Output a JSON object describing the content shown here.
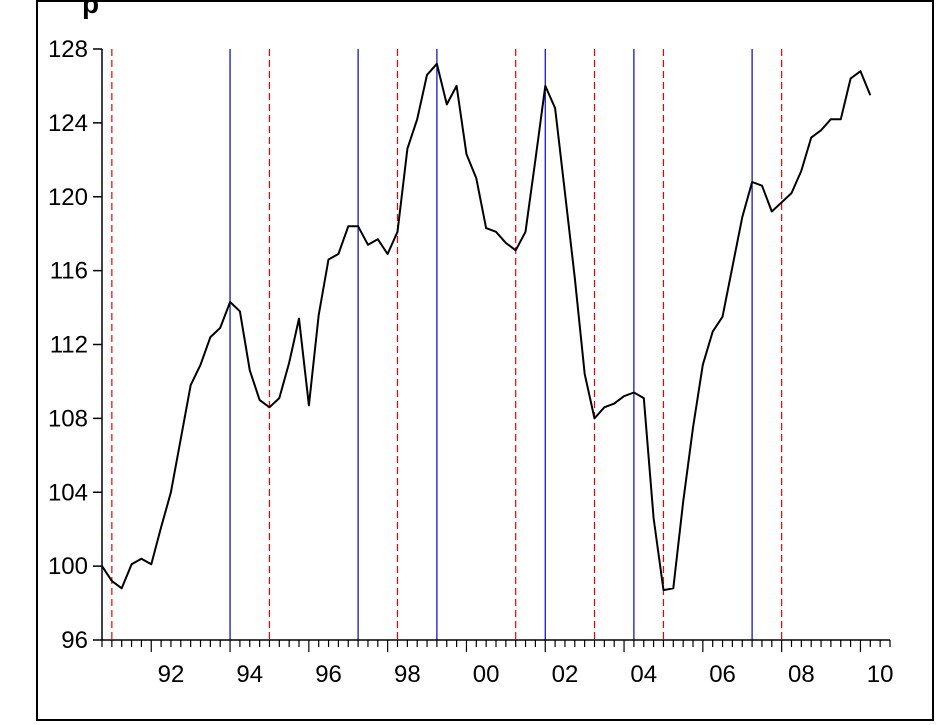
{
  "figure": {
    "title_fragment": "p"
  },
  "chart_data": {
    "type": "line",
    "title": "",
    "xlabel": "",
    "ylabel": "",
    "xlim": [
      1990.75,
      2010.75
    ],
    "ylim": [
      96,
      128
    ],
    "y_ticks": [
      96,
      100,
      104,
      108,
      112,
      116,
      120,
      124,
      128
    ],
    "y_tick_labels": [
      "96",
      "100",
      "104",
      "108",
      "112",
      "116",
      "120",
      "124",
      "128"
    ],
    "x_tick_labels": [
      "92",
      "94",
      "96",
      "98",
      "00",
      "02",
      "04",
      "06",
      "08",
      "10"
    ],
    "x_tick_years": [
      1992,
      1994,
      1996,
      1998,
      2000,
      2002,
      2004,
      2006,
      2008,
      2010
    ],
    "x_minor_step_years": 0.25,
    "grid": false,
    "line_color": "#000000",
    "peak_line_color": "#0000cc",
    "trough_line_color": "#ee0000",
    "series": [
      {
        "frequency": "quarterly",
        "start": "1990Q4",
        "values": [
          100.0,
          99.2,
          98.8,
          100.1,
          100.4,
          100.1,
          102.1,
          104.0,
          106.9,
          109.8,
          110.9,
          112.4,
          112.9,
          114.3,
          113.8,
          110.6,
          109.0,
          108.6,
          109.1,
          111.0,
          113.4,
          108.7,
          113.6,
          116.6,
          116.9,
          118.4,
          118.4,
          117.4,
          117.7,
          116.9,
          118.1,
          122.6,
          124.2,
          126.6,
          127.2,
          125.0,
          126.0,
          122.3,
          121.0,
          118.3,
          118.1,
          117.5,
          117.1,
          118.1,
          122.0,
          126.0,
          124.8,
          120.2,
          115.6,
          110.4,
          108.0,
          108.6,
          108.8,
          109.2,
          109.4,
          109.1,
          102.6,
          98.7,
          98.8,
          103.5,
          107.5,
          110.9,
          112.7,
          113.5,
          116.2,
          118.9,
          120.8,
          120.6,
          119.2,
          119.7,
          120.2,
          121.4,
          123.2,
          123.6,
          124.2,
          124.2,
          126.4,
          126.8,
          125.5
        ]
      }
    ],
    "peaks": [
      "1994Q1",
      "1997Q2",
      "1999Q2",
      "2002Q1",
      "2004Q2",
      "2007Q2"
    ],
    "troughs": [
      "1991Q1",
      "1995Q1",
      "1998Q2",
      "2001Q2",
      "2003Q2",
      "2005Q1",
      "2008Q1"
    ]
  }
}
